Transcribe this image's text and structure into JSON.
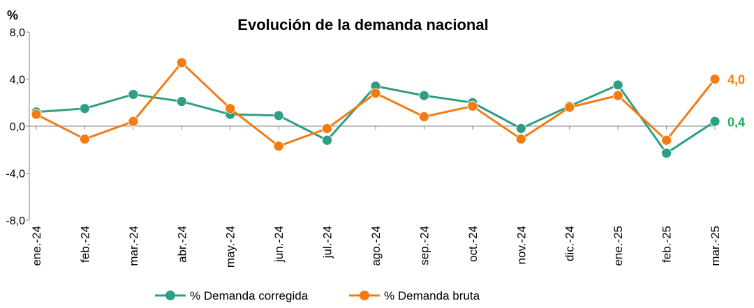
{
  "chart_data": {
    "type": "line",
    "title": "Evolución de la demanda nacional",
    "ylabel": "%",
    "xlabel": "",
    "ylim": [
      -8,
      8
    ],
    "yticks": [
      8,
      4,
      0,
      -4,
      -8
    ],
    "ytick_labels": [
      "8,0",
      "4,0",
      "0,0",
      "-4,0",
      "-8,0"
    ],
    "categories": [
      "ene.-24",
      "feb.-24",
      "mar.-24",
      "abr.-24",
      "may.-24",
      "jun.-24",
      "jul.-24",
      "ago.-24",
      "sep.-24",
      "oct.-24",
      "nov.-24",
      "dic.-24",
      "ene.-25",
      "feb.-25",
      "mar.-25"
    ],
    "series": [
      {
        "name": "% Demanda corregida",
        "color": "#2e9e84",
        "values": [
          1.2,
          1.5,
          2.7,
          2.1,
          1.0,
          0.9,
          -1.2,
          3.4,
          2.6,
          2.0,
          -0.2,
          1.7,
          3.5,
          -2.3,
          0.4
        ],
        "end_label": "0,4",
        "end_label_color": "#1fae5a"
      },
      {
        "name": "% Demanda bruta",
        "color": "#f47b12",
        "values": [
          1.0,
          -1.1,
          0.4,
          5.4,
          1.5,
          -1.7,
          -0.2,
          2.8,
          0.8,
          1.7,
          -1.1,
          1.6,
          2.6,
          -1.2,
          4.0
        ],
        "end_label": "4,0",
        "end_label_color": "#f47b12"
      }
    ],
    "legend": "bottom",
    "grid": false
  }
}
